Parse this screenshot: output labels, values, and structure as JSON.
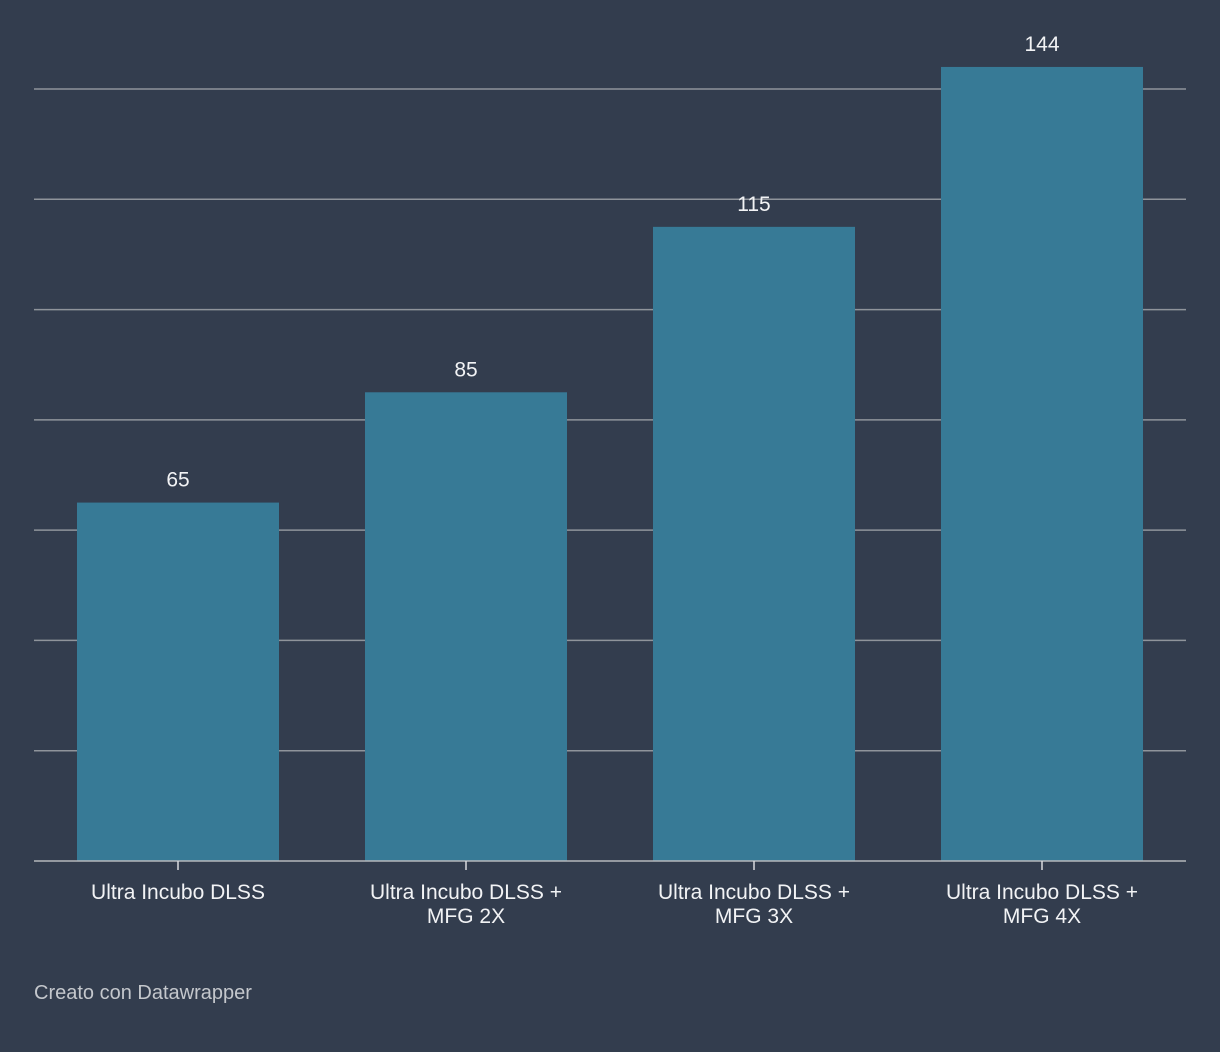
{
  "chart_data": {
    "type": "bar",
    "categories": [
      [
        "Ultra Incubo DLSS"
      ],
      [
        "Ultra Incubo DLSS +",
        "MFG 2X"
      ],
      [
        "Ultra Incubo DLSS +",
        "MFG 3X"
      ],
      [
        "Ultra Incubo DLSS +",
        "MFG 4X"
      ]
    ],
    "values": [
      65,
      85,
      115,
      144
    ],
    "ylim": [
      0,
      140
    ],
    "grid": true,
    "gridline_step": 20,
    "show_data_labels": true,
    "show_y_tick_labels": false,
    "bar_color": "#377a96",
    "background_color": "#333d4e"
  },
  "footer": {
    "credit": "Creato con Datawrapper"
  }
}
